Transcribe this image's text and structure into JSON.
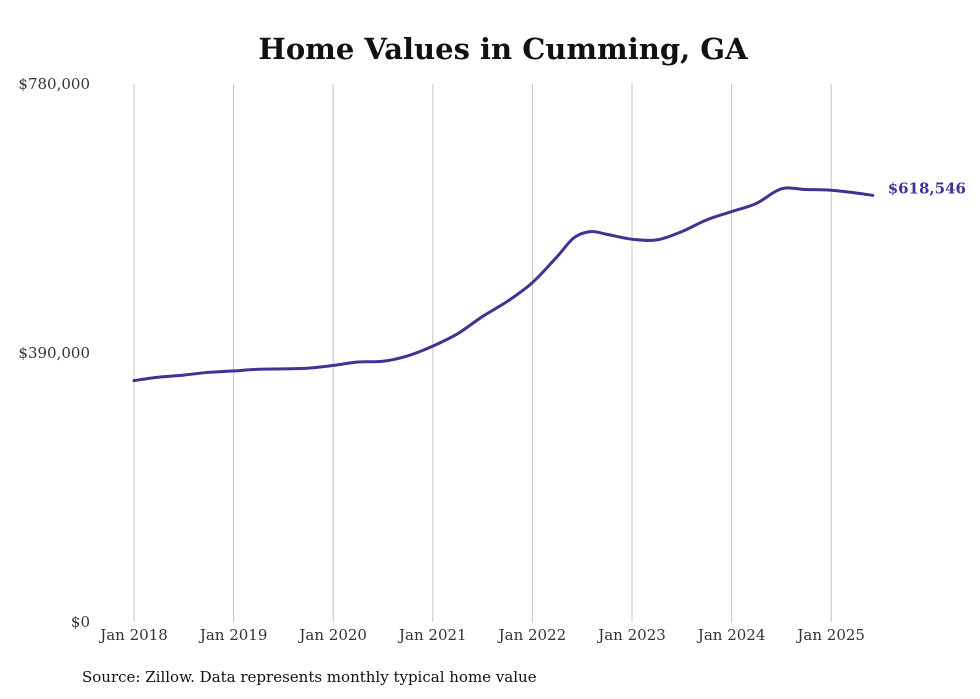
{
  "chart_data": {
    "type": "line",
    "title": "Home Values in Cumming, GA",
    "xlabel": "",
    "ylabel": "",
    "ylim": [
      0,
      780000
    ],
    "y_ticks": [
      {
        "value": 0,
        "label": "$0"
      },
      {
        "value": 390000,
        "label": "$390,000"
      },
      {
        "value": 780000,
        "label": "$780,000"
      }
    ],
    "x_ticks": [
      {
        "value": "2018-01",
        "label": "Jan 2018"
      },
      {
        "value": "2019-01",
        "label": "Jan 2019"
      },
      {
        "value": "2020-01",
        "label": "Jan 2020"
      },
      {
        "value": "2021-01",
        "label": "Jan 2021"
      },
      {
        "value": "2022-01",
        "label": "Jan 2022"
      },
      {
        "value": "2023-01",
        "label": "Jan 2023"
      },
      {
        "value": "2024-01",
        "label": "Jan 2024"
      },
      {
        "value": "2025-01",
        "label": "Jan 2025"
      }
    ],
    "grid": "vertical",
    "series": [
      {
        "color": "#3d3593",
        "end_label": "$618,546",
        "points": [
          {
            "x": "2018-01",
            "y": 350000
          },
          {
            "x": "2018-04",
            "y": 355000
          },
          {
            "x": "2018-07",
            "y": 358000
          },
          {
            "x": "2018-10",
            "y": 362000
          },
          {
            "x": "2019-01",
            "y": 364000
          },
          {
            "x": "2019-04",
            "y": 366500
          },
          {
            "x": "2019-07",
            "y": 367000
          },
          {
            "x": "2019-10",
            "y": 368000
          },
          {
            "x": "2020-01",
            "y": 372000
          },
          {
            "x": "2020-04",
            "y": 377000
          },
          {
            "x": "2020-07",
            "y": 378000
          },
          {
            "x": "2020-10",
            "y": 386000
          },
          {
            "x": "2021-01",
            "y": 400000
          },
          {
            "x": "2021-04",
            "y": 418000
          },
          {
            "x": "2021-07",
            "y": 443000
          },
          {
            "x": "2021-10",
            "y": 465000
          },
          {
            "x": "2022-01",
            "y": 492000
          },
          {
            "x": "2022-04",
            "y": 530000
          },
          {
            "x": "2022-06",
            "y": 557000
          },
          {
            "x": "2022-08",
            "y": 566000
          },
          {
            "x": "2022-10",
            "y": 562000
          },
          {
            "x": "2023-01",
            "y": 555000
          },
          {
            "x": "2023-04",
            "y": 554000
          },
          {
            "x": "2023-07",
            "y": 566000
          },
          {
            "x": "2023-10",
            "y": 583000
          },
          {
            "x": "2024-01",
            "y": 595000
          },
          {
            "x": "2024-04",
            "y": 607000
          },
          {
            "x": "2024-07",
            "y": 628000
          },
          {
            "x": "2024-10",
            "y": 627000
          },
          {
            "x": "2025-01",
            "y": 626000
          },
          {
            "x": "2025-04",
            "y": 622000
          },
          {
            "x": "2025-06",
            "y": 618546
          }
        ]
      }
    ]
  },
  "footer": {
    "source": "Source: Zillow. Data represents monthly typical home value"
  }
}
